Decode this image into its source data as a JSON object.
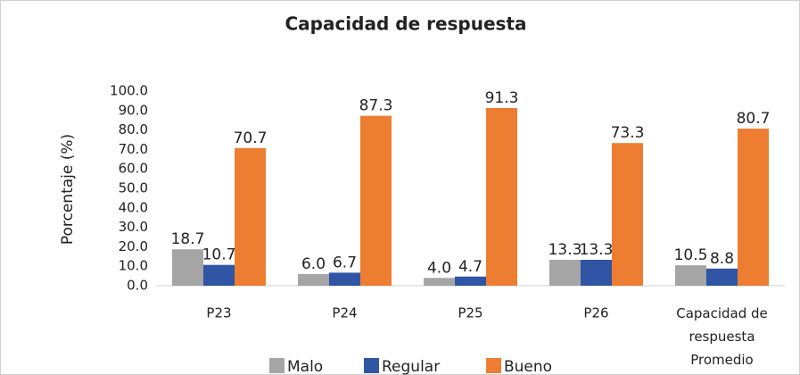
{
  "chart_data": {
    "type": "bar",
    "title": "Capacidad de respuesta",
    "ylabel": "Porcentaje (%)",
    "categories": [
      "P23",
      "P24",
      "P25",
      "P26",
      "Capacidad de respuesta Promedio"
    ],
    "series": [
      {
        "name": "Malo",
        "color": "#a5a5a5",
        "values": [
          18.7,
          6.0,
          4.0,
          13.3,
          10.5
        ],
        "value_labels": [
          "18.7",
          "6.0",
          "4.0",
          "13.3",
          "10.5"
        ]
      },
      {
        "name": "Regular",
        "color": "#2f55a4",
        "values": [
          10.7,
          6.7,
          4.7,
          13.3,
          8.8
        ],
        "value_labels": [
          "10.7",
          "6.7",
          "4.7",
          "13.3",
          "8.8"
        ]
      },
      {
        "name": "Bueno",
        "color": "#ed7d31",
        "values": [
          70.7,
          87.3,
          91.3,
          73.3,
          80.7
        ],
        "value_labels": [
          "70.7",
          "87.3",
          "91.3",
          "73.3",
          "80.7"
        ]
      }
    ],
    "ylim": [
      0,
      100
    ],
    "yticks": [
      {
        "value": 0,
        "label": "0.0"
      },
      {
        "value": 10,
        "label": "10.0"
      },
      {
        "value": 20,
        "label": "20.0"
      },
      {
        "value": 30,
        "label": "30.0"
      },
      {
        "value": 40,
        "label": "40.0"
      },
      {
        "value": 50,
        "label": "50.0"
      },
      {
        "value": 60,
        "label": "60.0"
      },
      {
        "value": 70,
        "label": "70.0"
      },
      {
        "value": 80,
        "label": "80.0"
      },
      {
        "value": 90,
        "label": "90.0"
      },
      {
        "value": 100,
        "label": "100.0"
      }
    ],
    "grid": false,
    "legend": "bottom"
  }
}
